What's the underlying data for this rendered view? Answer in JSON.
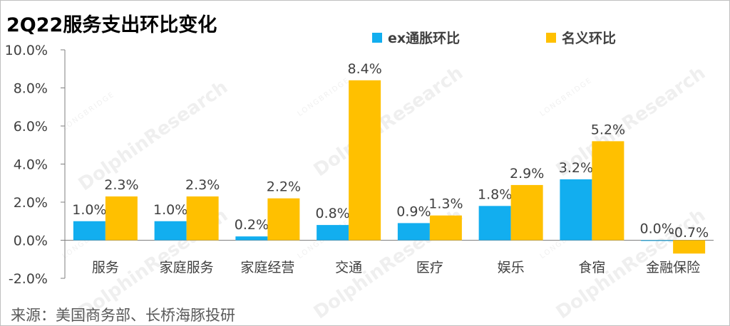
{
  "title": "2Q22服务支出环比变化",
  "source": "来源：美国商务部、长桥海豚投研",
  "watermark": {
    "brand": "LONGBRIDGE",
    "name": "DolphinResearch"
  },
  "colors": {
    "ex": "#12AEEF",
    "nominal": "#FFC000",
    "axis": "#7f7f7f",
    "text": "#404040"
  },
  "chart_data": {
    "type": "bar",
    "title": "2Q22服务支出环比变化",
    "categories": [
      "服务",
      "家庭服务",
      "家庭经营",
      "交通",
      "医疗",
      "娱乐",
      "食宿",
      "金融保险"
    ],
    "series": [
      {
        "name": "ex通胀环比",
        "values": [
          1.0,
          1.0,
          0.2,
          0.8,
          0.9,
          1.8,
          3.2,
          0.0
        ],
        "labels": [
          "1.0%",
          "1.0%",
          "0.2%",
          "0.8%",
          "0.9%",
          "1.8%",
          "3.2%",
          "0.0%"
        ]
      },
      {
        "name": "名义环比",
        "values": [
          2.3,
          2.3,
          2.2,
          8.4,
          1.3,
          2.9,
          5.2,
          -0.7
        ],
        "labels": [
          "2.3%",
          "2.3%",
          "2.2%",
          "8.4%",
          "1.3%",
          "2.9%",
          "5.2%",
          "-0.7%"
        ]
      }
    ],
    "ylim": [
      -2.0,
      10.0
    ],
    "yticks": [
      -2.0,
      0.0,
      2.0,
      4.0,
      6.0,
      8.0,
      10.0
    ],
    "ytick_labels": [
      "-2.0%",
      "0.0%",
      "2.0%",
      "4.0%",
      "6.0%",
      "8.0%",
      "10.0%"
    ],
    "xlabel": "",
    "ylabel": "",
    "grid": false,
    "legend": "top-right"
  }
}
